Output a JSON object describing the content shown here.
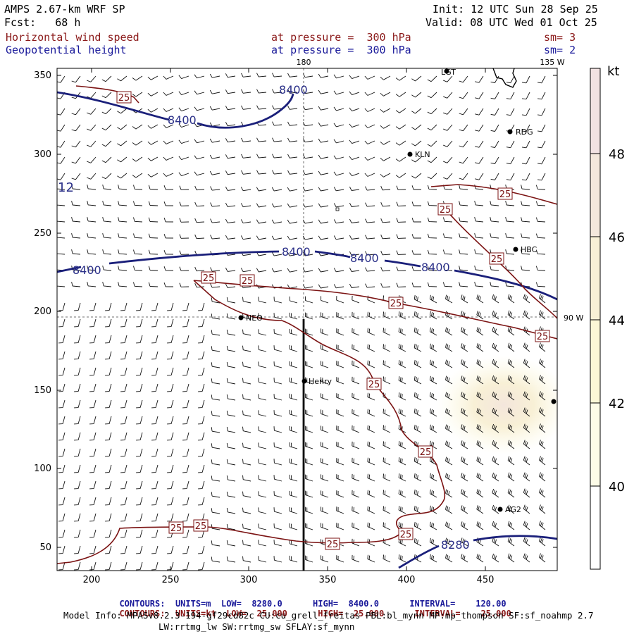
{
  "header": {
    "model_title": "AMPS 2.67-km WRF SP",
    "forecast": "Fcst:   68 h",
    "init": "Init: 12 UTC Sun 28 Sep 25",
    "valid": "Valid: 08 UTC Wed 01 Oct 25",
    "field1": {
      "name": "Horizontal wind speed",
      "level": "at pressure =  300 hPa",
      "smooth": "sm= 3"
    },
    "field2": {
      "name": "Geopotential height",
      "level": "at pressure =  300 hPa",
      "smooth": "sm= 2"
    }
  },
  "map": {
    "x_ticks": [
      "200",
      "250",
      "300",
      "350",
      "400",
      "450"
    ],
    "y_ticks": [
      "350",
      "300",
      "250",
      "200",
      "150",
      "100",
      "50"
    ],
    "lon_labels": {
      "top": "180",
      "top_right": "135 W",
      "right": "90 W"
    },
    "stations": [
      "LGT",
      "RDG",
      "KLN",
      "HBC",
      "NEO",
      "Henry",
      "AG2"
    ],
    "height_contours": [
      "8400",
      "8400",
      "8400",
      "8400",
      "8400",
      "8280"
    ],
    "speed_contour_label": "25",
    "edge_label": "12"
  },
  "colorbar": {
    "unit": "kt",
    "levels": [
      "48",
      "46",
      "44",
      "42",
      "40"
    ],
    "colors": [
      "#f2e2e2",
      "#f4e8dc",
      "#f8f0d6",
      "#fbf7d6",
      "#fdfce8",
      "#ffffff"
    ]
  },
  "footer": {
    "line1": {
      "label": "CONTOURS:",
      "units": "UNITS=m",
      "low": "LOW=  8280.0",
      "high": "HIGH=  8400.0",
      "interval": "INTERVAL=    120.00"
    },
    "line2": {
      "label": "CONTOURS:",
      "units": "UNITS=kt",
      "low": "LOW=  25.000",
      "high": "HIGH=  25.000",
      "interval": "INTERVAL=    25.000"
    },
    "model_info_1": "Model Info: MPASv8.2.3-194-gf29cd82c CU:cu_grell_freitas PBL:bl_mynn MP:mp_thompson SF:sf_noahmp 2.7",
    "model_info_2": "LW:rrtmg_lw SW:rrtmg_sw SFLAY:sf_mynn"
  }
}
